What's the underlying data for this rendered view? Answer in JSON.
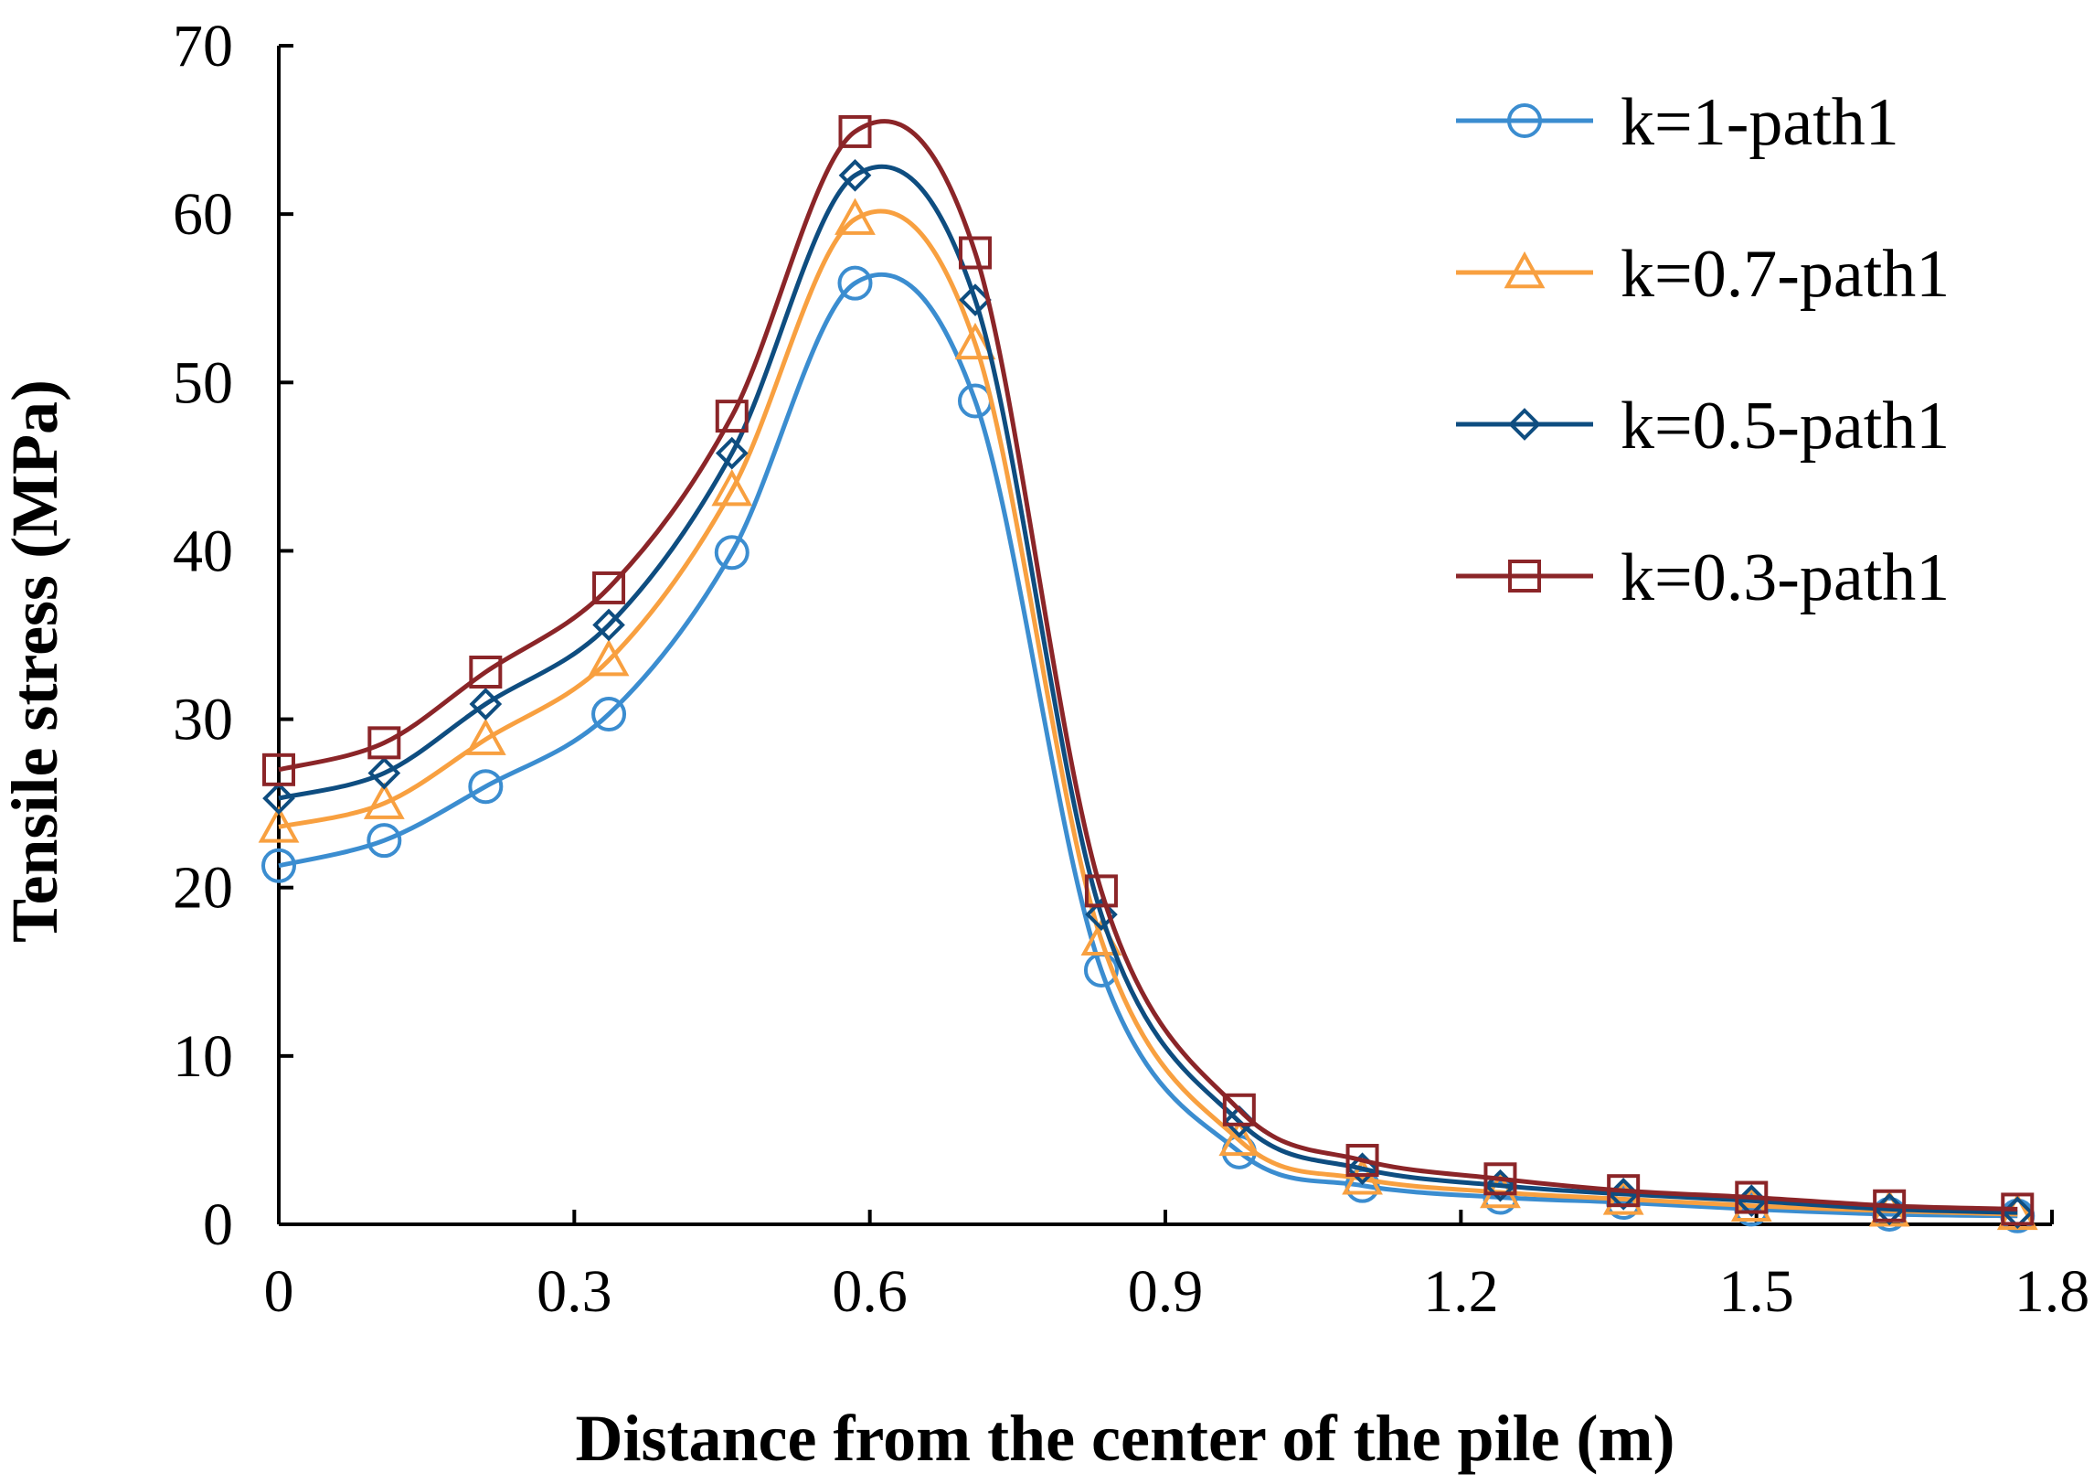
{
  "chart_data": {
    "type": "line",
    "title": "",
    "xlabel": "Distance from the center of the pile (m)",
    "ylabel": "Tensile stress (MPa)",
    "xlim": [
      0,
      1.8
    ],
    "ylim": [
      0,
      70
    ],
    "xticks": [
      0,
      0.3,
      0.6,
      0.9,
      1.2,
      1.5,
      1.8
    ],
    "xtick_labels": [
      "0",
      "0.3",
      "0.6",
      "0.9",
      "1.2",
      "1.5",
      "1.8"
    ],
    "yticks": [
      0,
      10,
      20,
      30,
      40,
      50,
      60,
      70
    ],
    "ytick_labels": [
      "0",
      "10",
      "20",
      "30",
      "40",
      "50",
      "60",
      "70"
    ],
    "grid": false,
    "legend_position": "top-right",
    "x": [
      0,
      0.107,
      0.21,
      0.335,
      0.46,
      0.585,
      0.707,
      0.835,
      0.975,
      1.1,
      1.24,
      1.365,
      1.495,
      1.635,
      1.765
    ],
    "series": [
      {
        "name": "k=1-path1",
        "color": "#3b8dd0",
        "marker": "circle",
        "values": [
          21.3,
          22.8,
          26.0,
          30.3,
          39.9,
          55.9,
          48.9,
          15.1,
          4.3,
          2.3,
          1.6,
          1.3,
          0.9,
          0.6,
          0.5
        ]
      },
      {
        "name": "k=0.7-path1",
        "color": "#f8a040",
        "marker": "triangle",
        "values": [
          23.6,
          25.0,
          28.8,
          33.5,
          43.6,
          59.7,
          52.3,
          16.9,
          5.0,
          2.7,
          1.9,
          1.5,
          1.1,
          0.8,
          0.6
        ]
      },
      {
        "name": "k=0.5-path1",
        "color": "#0e4d80",
        "marker": "diamond",
        "values": [
          25.3,
          26.8,
          30.9,
          35.6,
          45.8,
          62.3,
          54.9,
          18.4,
          6.1,
          3.3,
          2.3,
          1.8,
          1.4,
          0.9,
          0.7
        ]
      },
      {
        "name": "k=0.3-path1",
        "color": "#8b2528",
        "marker": "square",
        "values": [
          27.0,
          28.6,
          32.8,
          37.8,
          48.0,
          64.9,
          57.7,
          19.8,
          6.8,
          3.8,
          2.7,
          2.0,
          1.6,
          1.1,
          0.9
        ]
      }
    ]
  }
}
